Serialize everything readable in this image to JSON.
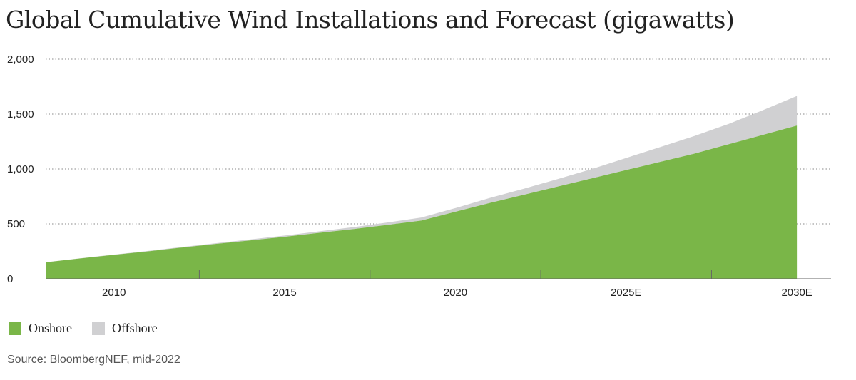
{
  "title": "Global Cumulative Wind Installations and Forecast (gigawatts)",
  "source": "Source: BloombergNEF, mid-2022",
  "colors": {
    "onshore": "#7ab648",
    "offshore": "#d0d0d2",
    "grid": "#888888",
    "axis": "#666666"
  },
  "legend": [
    {
      "label": "Onshore",
      "color": "#7ab648"
    },
    {
      "label": "Offshore",
      "color": "#d0d0d2"
    }
  ],
  "chart_data": {
    "type": "area",
    "stacked": true,
    "title": "Global Cumulative Wind Installations and Forecast (gigawatts)",
    "x": [
      2008,
      2009,
      2010,
      2011,
      2012,
      2013,
      2014,
      2015,
      2016,
      2017,
      2018,
      2019,
      2020,
      2021,
      2022,
      2023,
      2024,
      2025,
      2026,
      2027,
      2028,
      2029,
      2030
    ],
    "series": [
      {
        "name": "Onshore",
        "values": [
          150,
          185,
          218,
          250,
          285,
          318,
          350,
          382,
          418,
          452,
          490,
          530,
          610,
          690,
          765,
          840,
          915,
          990,
          1065,
          1140,
          1225,
          1310,
          1395
        ]
      },
      {
        "name": "Offshore",
        "values": [
          1,
          2,
          3,
          4,
          5,
          7,
          9,
          12,
          14,
          18,
          22,
          28,
          34,
          45,
          55,
          68,
          85,
          110,
          135,
          160,
          185,
          225,
          270
        ]
      }
    ],
    "xticks": [
      {
        "value": 2010,
        "label": "2010"
      },
      {
        "value": 2015,
        "label": "2015"
      },
      {
        "value": 2020,
        "label": "2020"
      },
      {
        "value": 2025,
        "label": "2025E"
      },
      {
        "value": 2030,
        "label": "2030E"
      }
    ],
    "yticks": [
      {
        "value": 0,
        "label": "0"
      },
      {
        "value": 500,
        "label": "500"
      },
      {
        "value": 1000,
        "label": "1,000"
      },
      {
        "value": 1500,
        "label": "1,500"
      },
      {
        "value": 2000,
        "label": "2,000"
      }
    ],
    "ylim": [
      0,
      2000
    ],
    "xlim": [
      2008,
      2031
    ],
    "grid": "horizontal-dotted",
    "legend_position": "bottom-left"
  }
}
